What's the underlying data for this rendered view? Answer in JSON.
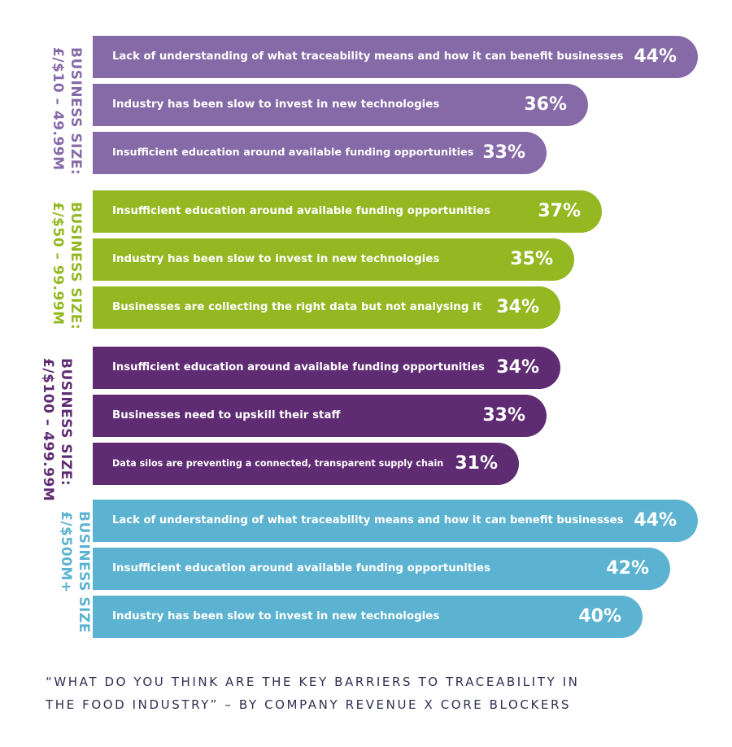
{
  "chart_data": {
    "type": "bar",
    "orientation": "horizontal",
    "unit": "%",
    "xlim": [
      0,
      44
    ],
    "groups": [
      {
        "label_line1": "BUSINESS SIZE:",
        "label_line2": "£/$10 – 49.99M",
        "color": "#866aa8",
        "bars": [
          {
            "label": "Lack of understanding of what traceability means and how it can benefit businesses",
            "value": 44,
            "value_text": "44%"
          },
          {
            "label": "Industry has been slow to invest in new technologies",
            "value": 36,
            "value_text": "36%"
          },
          {
            "label": "Insufficient education around available funding opportunities",
            "value": 33,
            "value_text": "33%"
          }
        ]
      },
      {
        "label_line1": "BUSINESS SIZE:",
        "label_line2": "£/$50 – 99.99M",
        "color": "#93b821",
        "bars": [
          {
            "label": "Insufficient education around available funding opportunities",
            "value": 37,
            "value_text": "37%"
          },
          {
            "label": "Industry has been slow to invest in new technologies",
            "value": 35,
            "value_text": "35%"
          },
          {
            "label": "Businesses are collecting the right data but not analysing it",
            "value": 34,
            "value_text": "34%"
          }
        ]
      },
      {
        "label_line1": "BUSINESS SIZE:",
        "label_line2": "£/$100 – 499.99M",
        "color": "#5f2b73",
        "bars": [
          {
            "label": "Insufficient education around available funding opportunities",
            "value": 34,
            "value_text": "34%"
          },
          {
            "label": "Businesses need to upskill their staff",
            "value": 33,
            "value_text": "33%"
          },
          {
            "label": "Data silos are preventing a connected, transparent supply chain",
            "value": 31,
            "value_text": "31%"
          }
        ]
      },
      {
        "label_line1": "BUSINESS SIZE",
        "label_line2": "£/$500M+",
        "color": "#5cb3d1",
        "bars": [
          {
            "label": "Lack of understanding of what traceability means and how it can benefit businesses",
            "value": 44,
            "value_text": "44%"
          },
          {
            "label": "Insufficient education around available funding opportunities",
            "value": 42,
            "value_text": "42%"
          },
          {
            "label": "Industry has been slow to invest in new technologies",
            "value": 40,
            "value_text": "40%"
          }
        ]
      }
    ]
  },
  "caption": {
    "line1": "“WHAT DO YOU THINK ARE THE KEY BARRIERS TO TRACEABILITY IN",
    "line2": "THE FOOD INDUSTRY” – BY COMPANY REVENUE X CORE BLOCKERS"
  }
}
